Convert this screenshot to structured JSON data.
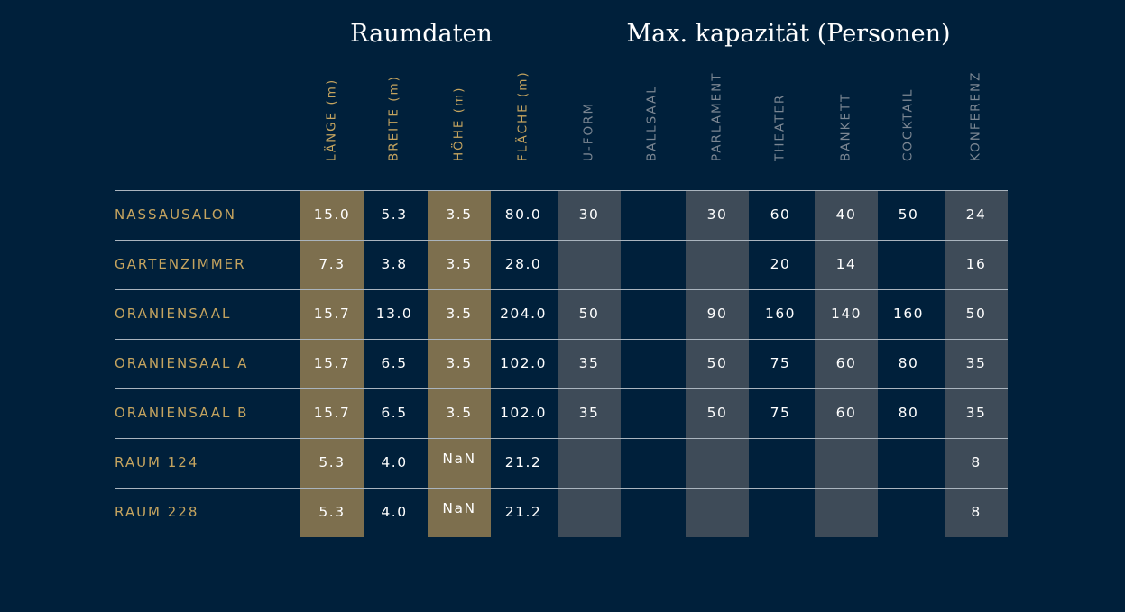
{
  "titles": {
    "raumdaten": "Raumdaten",
    "kapazitaet": "Max. kapazität (Personen)"
  },
  "colors": {
    "background": "#00203b",
    "accent_gold": "#c5a45f",
    "band_gold": "#7d6f4e",
    "band_grey": "#3e4b58",
    "muted_header": "#7c8793"
  },
  "columns": [
    {
      "key": "laenge",
      "label": "LÄNGE (m)",
      "group": "raumdaten",
      "highlight": "gold"
    },
    {
      "key": "breite",
      "label": "BREITE (m)",
      "group": "raumdaten",
      "highlight": "none"
    },
    {
      "key": "hoehe",
      "label": "HÖHE (m)",
      "group": "raumdaten",
      "highlight": "gold"
    },
    {
      "key": "flaeche",
      "label": "FLÄCHE (m)",
      "group": "raumdaten",
      "highlight": "none"
    },
    {
      "key": "uform",
      "label": "U-FORM",
      "group": "kapazitaet",
      "highlight": "grey"
    },
    {
      "key": "ballsaal",
      "label": "BALLSAAL",
      "group": "kapazitaet",
      "highlight": "none"
    },
    {
      "key": "parlament",
      "label": "PARLAMENT",
      "group": "kapazitaet",
      "highlight": "grey"
    },
    {
      "key": "theater",
      "label": "THEATER",
      "group": "kapazitaet",
      "highlight": "none"
    },
    {
      "key": "bankett",
      "label": "BANKETT",
      "group": "kapazitaet",
      "highlight": "grey"
    },
    {
      "key": "cocktail",
      "label": "COCKTAIL",
      "group": "kapazitaet",
      "highlight": "none"
    },
    {
      "key": "konferenz",
      "label": "KONFERENZ",
      "group": "kapazitaet",
      "highlight": "grey"
    }
  ],
  "rows": [
    {
      "name": "NASSAUSALON",
      "values": [
        "15.0",
        "5.3",
        "3.5",
        "80.0",
        "30",
        "",
        "30",
        "60",
        "40",
        "50",
        "24"
      ]
    },
    {
      "name": "GARTENZIMMER",
      "values": [
        "7.3",
        "3.8",
        "3.5",
        "28.0",
        "",
        "",
        "",
        "20",
        "14",
        "",
        "16"
      ]
    },
    {
      "name": "ORANIENSAAL",
      "values": [
        "15.7",
        "13.0",
        "3.5",
        "204.0",
        "50",
        "",
        "90",
        "160",
        "140",
        "160",
        "50"
      ]
    },
    {
      "name": "ORANIENSAAL A",
      "values": [
        "15.7",
        "6.5",
        "3.5",
        "102.0",
        "35",
        "",
        "50",
        "75",
        "60",
        "80",
        "35"
      ]
    },
    {
      "name": "ORANIENSAAL B",
      "values": [
        "15.7",
        "6.5",
        "3.5",
        "102.0",
        "35",
        "",
        "50",
        "75",
        "60",
        "80",
        "35"
      ]
    },
    {
      "name": "RAUM 124",
      "values": [
        "5.3",
        "4.0",
        "NaN",
        "21.2",
        "",
        "",
        "",
        "",
        "",
        "",
        "8"
      ]
    },
    {
      "name": "RAUM 228",
      "values": [
        "5.3",
        "4.0",
        "NaN",
        "21.2",
        "",
        "",
        "",
        "",
        "",
        "",
        "8"
      ]
    }
  ]
}
